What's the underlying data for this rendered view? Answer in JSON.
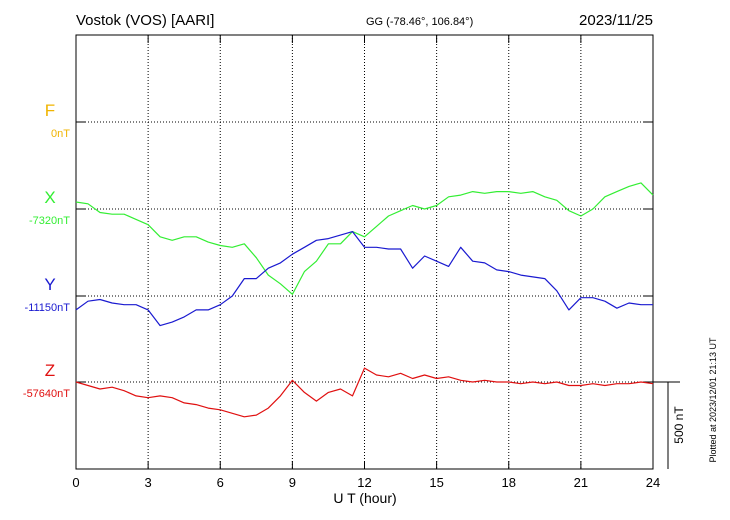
{
  "header": {
    "station": "Vostok (VOS)  [AARI]",
    "coords": "GG (-78.46°, 106.84°)",
    "date": "2023/11/25"
  },
  "side_note": "Plotted at 2023/12/01 21:13 UT",
  "chart_data": {
    "type": "line",
    "xlabel": "U T (hour)",
    "xlim": [
      0,
      24
    ],
    "xticks": [
      0,
      3,
      6,
      9,
      12,
      15,
      18,
      21,
      24
    ],
    "scale_bar": {
      "label": "500 nT",
      "value": 500,
      "unit": "nT"
    },
    "series": [
      {
        "name": "F",
        "baseline_label": "0nT",
        "color": "#f0b400",
        "baseline": 0,
        "x": [],
        "values": []
      },
      {
        "name": "X",
        "baseline_label": "-7320nT",
        "color": "#33ee33",
        "baseline": -7320,
        "x": [
          0,
          0.5,
          1,
          1.5,
          2,
          2.5,
          3,
          3.5,
          4,
          4.5,
          5,
          5.5,
          6,
          6.5,
          7,
          7.5,
          8,
          8.5,
          9,
          9.5,
          10,
          10.5,
          11,
          11.5,
          12,
          12.5,
          13,
          13.5,
          14,
          14.5,
          15,
          15.5,
          16,
          16.5,
          17,
          17.5,
          18,
          18.5,
          19,
          19.5,
          20,
          20.5,
          21,
          21.5,
          22,
          22.5,
          23,
          23.5,
          24
        ],
        "values": [
          -7280,
          -7290,
          -7340,
          -7350,
          -7350,
          -7380,
          -7410,
          -7480,
          -7500,
          -7480,
          -7480,
          -7510,
          -7530,
          -7540,
          -7520,
          -7600,
          -7700,
          -7750,
          -7810,
          -7680,
          -7620,
          -7520,
          -7520,
          -7450,
          -7480,
          -7420,
          -7360,
          -7330,
          -7300,
          -7320,
          -7300,
          -7250,
          -7240,
          -7220,
          -7230,
          -7220,
          -7220,
          -7230,
          -7220,
          -7250,
          -7270,
          -7330,
          -7360,
          -7320,
          -7250,
          -7220,
          -7190,
          -7170,
          -7240
        ]
      },
      {
        "name": "Y",
        "baseline_label": "-11150nT",
        "color": "#1a1ad0",
        "baseline": -11150,
        "x": [
          0,
          0.5,
          1,
          1.5,
          2,
          2.5,
          3,
          3.5,
          4,
          4.5,
          5,
          5.5,
          6,
          6.5,
          7,
          7.5,
          8,
          8.5,
          9,
          9.5,
          10,
          10.5,
          11,
          11.5,
          12,
          12.5,
          13,
          13.5,
          14,
          14.5,
          15,
          15.5,
          16,
          16.5,
          17,
          17.5,
          18,
          18.5,
          19,
          19.5,
          20,
          20.5,
          21,
          21.5,
          22,
          22.5,
          23,
          23.5,
          24
        ],
        "values": [
          -11230,
          -11180,
          -11170,
          -11190,
          -11200,
          -11200,
          -11230,
          -11320,
          -11300,
          -11270,
          -11230,
          -11230,
          -11200,
          -11150,
          -11050,
          -11050,
          -10990,
          -10960,
          -10910,
          -10870,
          -10830,
          -10820,
          -10800,
          -10780,
          -10870,
          -10870,
          -10880,
          -10880,
          -10990,
          -10920,
          -10950,
          -10980,
          -10870,
          -10950,
          -10960,
          -11000,
          -11010,
          -11030,
          -11040,
          -11050,
          -11120,
          -11230,
          -11160,
          -11160,
          -11180,
          -11220,
          -11190,
          -11200,
          -11200
        ]
      },
      {
        "name": "Z",
        "baseline_label": "-57640nT",
        "color": "#e01010",
        "baseline": -57640,
        "x": [
          0,
          0.5,
          1,
          1.5,
          2,
          2.5,
          3,
          3.5,
          4,
          4.5,
          5,
          5.5,
          6,
          6.5,
          7,
          7.5,
          8,
          8.5,
          9,
          9.5,
          10,
          10.5,
          11,
          11.5,
          12,
          12.5,
          13,
          13.5,
          14,
          14.5,
          15,
          15.5,
          16,
          16.5,
          17,
          17.5,
          18,
          18.5,
          19,
          19.5,
          20,
          20.5,
          21,
          21.5,
          22,
          22.5,
          23,
          23.5,
          24
        ],
        "values": [
          -57640,
          -57660,
          -57680,
          -57670,
          -57690,
          -57720,
          -57730,
          -57720,
          -57730,
          -57760,
          -57770,
          -57790,
          -57800,
          -57820,
          -57840,
          -57830,
          -57790,
          -57720,
          -57630,
          -57700,
          -57750,
          -57700,
          -57680,
          -57720,
          -57560,
          -57600,
          -57610,
          -57590,
          -57620,
          -57600,
          -57620,
          -57610,
          -57630,
          -57640,
          -57630,
          -57640,
          -57640,
          -57650,
          -57640,
          -57650,
          -57640,
          -57660,
          -57660,
          -57650,
          -57660,
          -57650,
          -57650,
          -57640,
          -57650
        ]
      }
    ]
  }
}
